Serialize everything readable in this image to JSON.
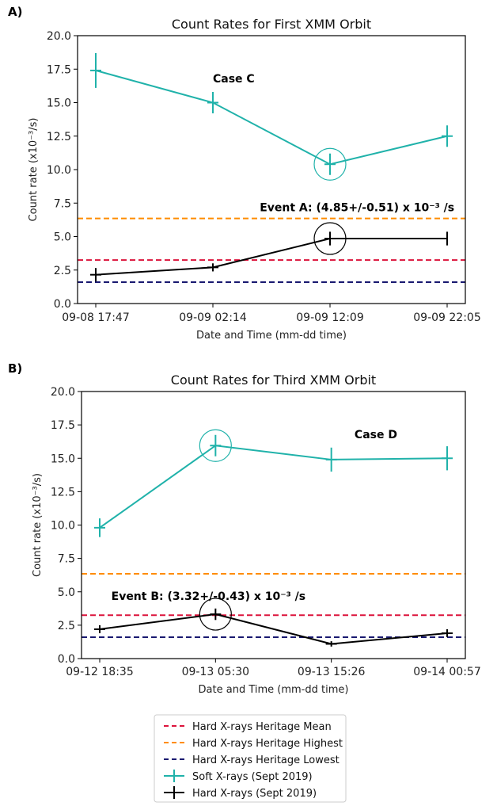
{
  "panels": [
    {
      "label": "A)",
      "title": "Count Rates for First XMM Orbit",
      "xlabel": "Date and Time (mm-dd time)",
      "ylabel": "Count rate (x10⁻³/s)",
      "annotations": [
        {
          "text": "Case C",
          "x": 1,
          "y": 16.5
        },
        {
          "text": "Event A: (4.85+/-0.51) x 10⁻³ /s",
          "x": 1.4,
          "y": 6.9
        }
      ],
      "circles": [
        {
          "series": "soft",
          "index": 2
        },
        {
          "series": "hard",
          "index": 2
        }
      ]
    },
    {
      "label": "B)",
      "title": "Count Rates for Third XMM Orbit",
      "xlabel": "Date and Time (mm-dd time)",
      "ylabel": "Count rate (x10⁻³/s)",
      "annotations": [
        {
          "text": "Case D",
          "x": 2.2,
          "y": 16.5
        },
        {
          "text": "Event B: (3.32+/-0.43) x 10⁻³ /s",
          "x": 0.1,
          "y": 4.4
        }
      ],
      "circles": [
        {
          "series": "soft",
          "index": 1
        },
        {
          "series": "hard",
          "index": 1
        }
      ]
    }
  ],
  "chart_data": [
    {
      "type": "line",
      "title": "Count Rates for First XMM Orbit",
      "xlabel": "Date and Time (mm-dd time)",
      "ylabel": "Count rate (x10⁻³/s)",
      "categories": [
        "09-08 17:47",
        "09-09 02:14",
        "09-09 12:09",
        "09-09 22:05"
      ],
      "ylim": [
        0,
        20
      ],
      "yticks": [
        "0.0",
        "2.5",
        "5.0",
        "7.5",
        "10.0",
        "12.5",
        "15.0",
        "17.5",
        "20.0"
      ],
      "series": [
        {
          "name": "Soft X-rays (Sept 2019)",
          "values": [
            17.4,
            15.0,
            10.4,
            12.5
          ],
          "errors": [
            1.3,
            0.8,
            0.8,
            0.8
          ],
          "xerr": [
            0,
            0,
            0,
            0
          ]
        },
        {
          "name": "Hard X-rays (Sept 2019)",
          "values": [
            2.15,
            2.7,
            4.85,
            4.85
          ],
          "errors": [
            0.5,
            0.3,
            0.51,
            0.51
          ],
          "xerr": [
            0,
            0,
            0,
            1
          ]
        }
      ],
      "hlines": [
        {
          "name": "Hard X-rays Heritage Mean",
          "y": 3.25
        },
        {
          "name": "Hard X-rays Heritage Highest",
          "y": 6.35
        },
        {
          "name": "Hard X-rays Heritage Lowest",
          "y": 1.6
        }
      ]
    },
    {
      "type": "line",
      "title": "Count Rates for Third XMM Orbit",
      "xlabel": "Date and Time (mm-dd time)",
      "ylabel": "Count rate (x10⁻³/s)",
      "categories": [
        "09-12 18:35",
        "09-13 05:30",
        "09-13 15:26",
        "09-14 00:57"
      ],
      "ylim": [
        0,
        20
      ],
      "yticks": [
        "0.0",
        "2.5",
        "5.0",
        "7.5",
        "10.0",
        "12.5",
        "15.0",
        "17.5",
        "20.0"
      ],
      "series": [
        {
          "name": "Soft X-rays (Sept 2019)",
          "values": [
            9.8,
            15.95,
            14.9,
            15.0
          ],
          "errors": [
            0.7,
            0.8,
            0.9,
            0.9
          ],
          "xerr": [
            0,
            0,
            0,
            0
          ]
        },
        {
          "name": "Hard X-rays (Sept 2019)",
          "values": [
            2.2,
            3.32,
            1.1,
            1.9
          ],
          "errors": [
            0.3,
            0.43,
            0.2,
            0.3
          ],
          "xerr": [
            0,
            0,
            0,
            0
          ]
        }
      ],
      "hlines": [
        {
          "name": "Hard X-rays Heritage Mean",
          "y": 3.25
        },
        {
          "name": "Hard X-rays Heritage Highest",
          "y": 6.35
        },
        {
          "name": "Hard X-rays Heritage Lowest",
          "y": 1.6
        }
      ]
    }
  ],
  "legend": {
    "placement": "bottom-center",
    "items": [
      {
        "label": "Hard X-rays Heritage Mean",
        "kind": "dash",
        "color": "#dc143c"
      },
      {
        "label": "Hard X-rays Heritage Highest",
        "kind": "dash",
        "color": "#ff8c00"
      },
      {
        "label": "Hard X-rays Heritage Lowest",
        "kind": "dash",
        "color": "#191970"
      },
      {
        "label": "Soft X-rays (Sept 2019)",
        "kind": "errorbar",
        "color": "#20b2aa"
      },
      {
        "label": "Hard X-rays (Sept 2019)",
        "kind": "errorbar",
        "color": "#000000"
      }
    ]
  },
  "colors": {
    "soft": "#20b2aa",
    "hard": "#000000",
    "mean": "#dc143c",
    "highest": "#ff8c00",
    "lowest": "#191970"
  }
}
